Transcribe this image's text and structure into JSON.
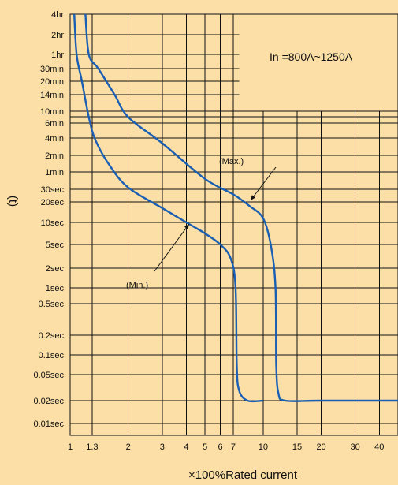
{
  "chart_data": {
    "type": "line",
    "title": "",
    "xlabel": "×100%Rated current",
    "ylabel": "(t)",
    "x_scale": "log",
    "xlim": [
      1,
      50
    ],
    "x_ticks": [
      {
        "label": "1",
        "value": 1
      },
      {
        "label": "1.3",
        "value": 1.3
      },
      {
        "label": "2",
        "value": 2
      },
      {
        "label": "3",
        "value": 3
      },
      {
        "label": "4",
        "value": 4
      },
      {
        "label": "5",
        "value": 5
      },
      {
        "label": "6",
        "value": 6
      },
      {
        "label": "7",
        "value": 7
      },
      {
        "label": "10",
        "value": 10
      },
      {
        "label": "15",
        "value": 15
      },
      {
        "label": "20",
        "value": 20
      },
      {
        "label": "30",
        "value": 30
      },
      {
        "label": "40",
        "value": 40
      }
    ],
    "y_ticks": [
      {
        "label": "4hr",
        "row": 0
      },
      {
        "label": "2hr",
        "row": 1
      },
      {
        "label": "1hr",
        "row": 2
      },
      {
        "label": "30min",
        "row": 3
      },
      {
        "label": "20min",
        "row": 4
      },
      {
        "label": "14min",
        "row": 5
      },
      {
        "label": "10min",
        "row": 6
      },
      {
        "label": "6min",
        "row": 7
      },
      {
        "label": "4min",
        "row": 8
      },
      {
        "label": "2min",
        "row": 9
      },
      {
        "label": "1min",
        "row": 10
      },
      {
        "label": "30sec",
        "row": 11
      },
      {
        "label": "20sec",
        "row": 12
      },
      {
        "label": "10sec",
        "row": 13
      },
      {
        "label": "5sec",
        "row": 14
      },
      {
        "label": "2sec",
        "row": 15
      },
      {
        "label": "1sec",
        "row": 16
      },
      {
        "label": "0.5sec",
        "row": 17
      },
      {
        "label": "0.2sec",
        "row": 18
      },
      {
        "label": "0.1sec",
        "row": 19
      },
      {
        "label": "0.05sec",
        "row": 20
      },
      {
        "label": "0.02sec",
        "row": 21
      },
      {
        "label": "0.01sec",
        "row": 22
      }
    ],
    "grid": true,
    "series": [
      {
        "name": "(Max.)",
        "color": "#1a5fb4",
        "points": [
          {
            "x": 1.2,
            "row": 0
          },
          {
            "x": 1.25,
            "row": 2
          },
          {
            "x": 1.4,
            "row": 3
          },
          {
            "x": 1.7,
            "row": 5
          },
          {
            "x": 2.0,
            "row": 6.5
          },
          {
            "x": 3.0,
            "row": 8.3
          },
          {
            "x": 5.0,
            "row": 10.4
          },
          {
            "x": 7.0,
            "row": 11.4
          },
          {
            "x": 8.5,
            "row": 12.2
          },
          {
            "x": 10.0,
            "row": 12.8
          },
          {
            "x": 11.0,
            "row": 14.1
          },
          {
            "x": 11.6,
            "row": 16.0
          },
          {
            "x": 11.7,
            "row": 19.5
          },
          {
            "x": 12.0,
            "row": 20.7
          },
          {
            "x": 13.0,
            "row": 21.0
          },
          {
            "x": 20.0,
            "row": 21.0
          },
          {
            "x": 50.0,
            "row": 21.0
          }
        ]
      },
      {
        "name": "(Min.)",
        "color": "#1a5fb4",
        "points": [
          {
            "x": 1.05,
            "row": 0
          },
          {
            "x": 1.08,
            "row": 2
          },
          {
            "x": 1.15,
            "row": 4
          },
          {
            "x": 1.25,
            "row": 6.5
          },
          {
            "x": 1.35,
            "row": 8.1
          },
          {
            "x": 1.6,
            "row": 9.6
          },
          {
            "x": 2.0,
            "row": 10.9
          },
          {
            "x": 3.0,
            "row": 12.3
          },
          {
            "x": 4.0,
            "row": 13.0
          },
          {
            "x": 5.0,
            "row": 13.5
          },
          {
            "x": 6.0,
            "row": 14.0
          },
          {
            "x": 6.8,
            "row": 14.6
          },
          {
            "x": 7.2,
            "row": 16.0
          },
          {
            "x": 7.3,
            "row": 19.5
          },
          {
            "x": 7.5,
            "row": 20.6
          },
          {
            "x": 8.3,
            "row": 21.0
          },
          {
            "x": 10.0,
            "row": 21.0
          }
        ]
      }
    ],
    "annotations": {
      "rating": "In =800A~1250A",
      "max_label": "(Max.)",
      "min_label": "(Min.)"
    }
  }
}
